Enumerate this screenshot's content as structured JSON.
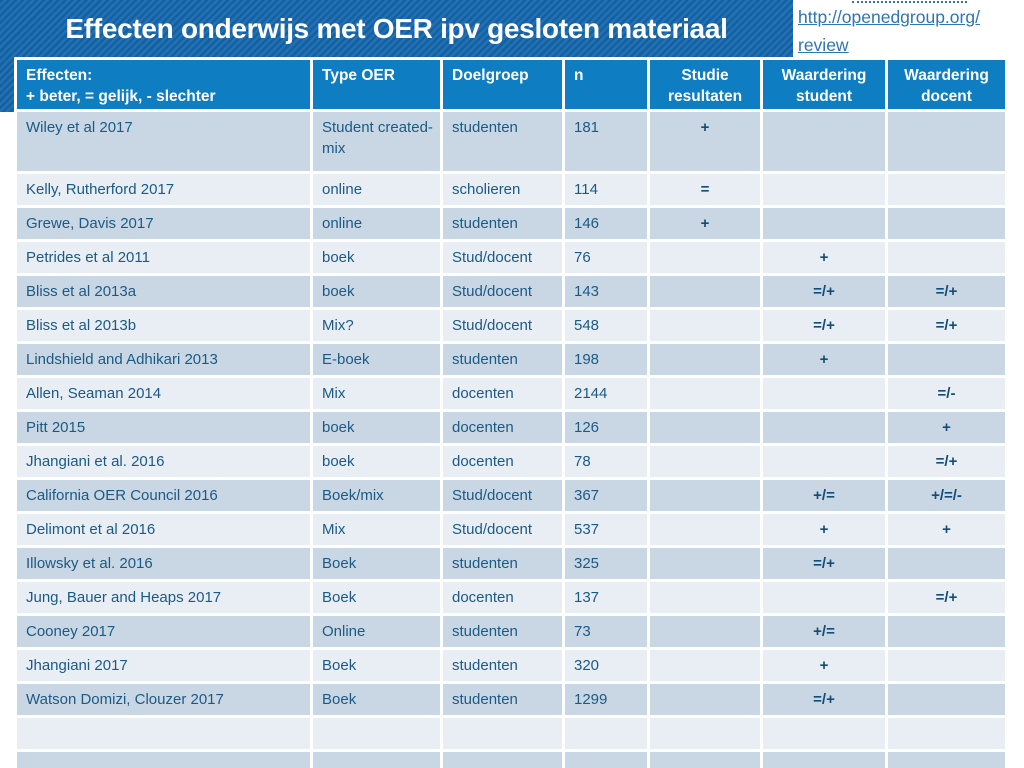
{
  "slide": {
    "title": "Effecten onderwijs met OER ipv gesloten materiaal",
    "link_line1": "http://openedgroup.org/",
    "link_line2": "review"
  },
  "colors": {
    "banner_stripe_dark": "#15619f",
    "banner_stripe_light": "#2270b6",
    "header_bg": "#0f7dc2",
    "row_dark": "#c9d7e5",
    "row_light": "#e9eef5",
    "cell_text": "#1b5a84",
    "link_blue": "#2e75b5"
  },
  "table": {
    "headers": {
      "effects_line1": "Effecten:",
      "effects_line2": "+ beter, = gelijk, - slechter",
      "type": "Type OER",
      "group": "Doelgroep",
      "n": "n",
      "results": "Studie resultaten",
      "student": "Waardering student",
      "teacher": "Waardering docent"
    },
    "rows": [
      {
        "study": "Wiley et al 2017",
        "type": "Student created- mix",
        "group": "studenten",
        "n": "181",
        "result": "+",
        "student": "",
        "teacher": ""
      },
      {
        "study": "Kelly, Rutherford 2017",
        "type": "online",
        "group": "scholieren",
        "n": "114",
        "result": "=",
        "student": "",
        "teacher": ""
      },
      {
        "study": "Grewe, Davis 2017",
        "type": "online",
        "group": "studenten",
        "n": "146",
        "result": "+",
        "student": "",
        "teacher": ""
      },
      {
        "study": "Petrides et al 2011",
        "type": "boek",
        "group": "Stud/docent",
        "n": "76",
        "result": "",
        "student": "+",
        "teacher": ""
      },
      {
        "study": "Bliss et al 2013a",
        "type": "boek",
        "group": "Stud/docent",
        "n": "143",
        "result": "",
        "student": "=/+",
        "teacher": "=/+"
      },
      {
        "study": "Bliss et al 2013b",
        "type": "Mix?",
        "group": "Stud/docent",
        "n": "548",
        "result": "",
        "student": "=/+",
        "teacher": "=/+"
      },
      {
        "study": "Lindshield and Adhikari 2013",
        "type": "E-boek",
        "group": "studenten",
        "n": "198",
        "result": "",
        "student": "+",
        "teacher": ""
      },
      {
        "study": "Allen, Seaman 2014",
        "type": "Mix",
        "group": "docenten",
        "n": "2144",
        "result": "",
        "student": "",
        "teacher": "=/-"
      },
      {
        "study": "Pitt 2015",
        "type": "boek",
        "group": "docenten",
        "n": "126",
        "result": "",
        "student": "",
        "teacher": "+"
      },
      {
        "study": "Jhangiani et al. 2016",
        "type": "boek",
        "group": "docenten",
        "n": "78",
        "result": "",
        "student": "",
        "teacher": "=/+"
      },
      {
        "study": "California OER Council 2016",
        "type": "Boek/mix",
        "group": "Stud/docent",
        "n": "367",
        "result": "",
        "student": "+/=",
        "teacher": "+/=/-"
      },
      {
        "study": "Delimont et al 2016",
        "type": "Mix",
        "group": "Stud/docent",
        "n": "537",
        "result": "",
        "student": "+",
        "teacher": "+"
      },
      {
        "study": "Illowsky et al. 2016",
        "type": "Boek",
        "group": "studenten",
        "n": "325",
        "result": "",
        "student": "=/+",
        "teacher": ""
      },
      {
        "study": "Jung, Bauer and Heaps 2017",
        "type": "Boek",
        "group": "docenten",
        "n": "137",
        "result": "",
        "student": "",
        "teacher": "=/+"
      },
      {
        "study": "Cooney 2017",
        "type": "Online",
        "group": "studenten",
        "n": "73",
        "result": "",
        "student": "+/=",
        "teacher": ""
      },
      {
        "study": "Jhangiani  2017",
        "type": "Boek",
        "group": "studenten",
        "n": "320",
        "result": "",
        "student": "+",
        "teacher": ""
      },
      {
        "study": "Watson Domizi, Clouzer 2017",
        "type": "Boek",
        "group": "studenten",
        "n": "1299",
        "result": "",
        "student": "=/+",
        "teacher": ""
      },
      {
        "study": "",
        "type": "",
        "group": "",
        "n": "",
        "result": "",
        "student": "",
        "teacher": ""
      },
      {
        "study": "",
        "type": "",
        "group": "",
        "n": "",
        "result": "",
        "student": "",
        "teacher": ""
      }
    ]
  }
}
